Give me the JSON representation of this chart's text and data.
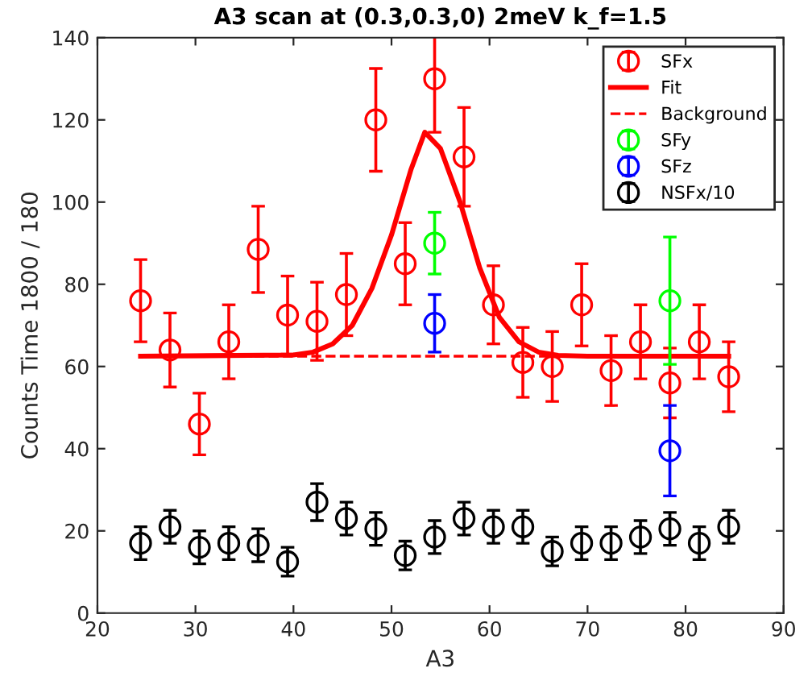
{
  "chart_data": {
    "type": "scatter",
    "title": "A3 scan at (0.3,0.3,0) 2meV k_f=1.5",
    "xlabel": "A3",
    "ylabel": "Counts Time 1800 / 180",
    "xlim": [
      20,
      90
    ],
    "ylim": [
      0,
      140
    ],
    "xticks": [
      20,
      30,
      40,
      50,
      60,
      70,
      80,
      90
    ],
    "yticks": [
      0,
      20,
      40,
      60,
      80,
      100,
      120,
      140
    ],
    "grid": false,
    "legend": "top right",
    "marker": "circle",
    "series": [
      {
        "name": "SFx",
        "color": "#ff0000",
        "x": [
          24.4,
          27.4,
          30.4,
          33.4,
          36.4,
          39.4,
          42.4,
          45.4,
          48.4,
          51.4,
          54.4,
          57.4,
          60.4,
          63.4,
          66.4,
          69.4,
          72.4,
          75.4,
          78.4,
          81.4,
          84.4
        ],
        "values": [
          76,
          64,
          46,
          66,
          88.5,
          72.5,
          71,
          77.5,
          120,
          85,
          130,
          111,
          75,
          61,
          60,
          75,
          59,
          66,
          56,
          66,
          57.5
        ],
        "errors": [
          10,
          9,
          7.5,
          9,
          10.5,
          9.5,
          9.5,
          10,
          12.5,
          10,
          13,
          12,
          9.5,
          8.5,
          8.5,
          10,
          8.5,
          9,
          8.5,
          9,
          8.5
        ]
      },
      {
        "name": "Fit",
        "type": "line",
        "marker": "none",
        "line_style": "solid",
        "color": "#ff0000",
        "x": [
          24.4,
          40,
          42,
          44,
          46,
          48,
          50,
          52,
          53.4,
          55,
          57,
          59,
          61,
          63,
          65,
          67,
          70,
          84.4
        ],
        "values": [
          62.5,
          62.8,
          63.5,
          65.5,
          70,
          79,
          92,
          108,
          117,
          113,
          100,
          84,
          72,
          66,
          63.5,
          62.7,
          62.5,
          62.5
        ]
      },
      {
        "name": "Background",
        "type": "line",
        "marker": "none",
        "line_style": "dashed",
        "color": "#ff0000",
        "x": [
          24.4,
          84.4
        ],
        "values": [
          62.5,
          62.5
        ]
      },
      {
        "name": "SFy",
        "color": "#00ff00",
        "x": [
          54.4,
          78.4
        ],
        "values": [
          90,
          76
        ],
        "errors": [
          7.5,
          15.5
        ]
      },
      {
        "name": "SFz",
        "color": "#0000ff",
        "x": [
          54.4,
          78.4
        ],
        "values": [
          70.5,
          39.5
        ],
        "errors": [
          7,
          11
        ]
      },
      {
        "name": "NSFx/10",
        "color": "#000000",
        "x": [
          24.4,
          27.4,
          30.4,
          33.4,
          36.4,
          39.4,
          42.4,
          45.4,
          48.4,
          51.4,
          54.4,
          57.4,
          60.4,
          63.4,
          66.4,
          69.4,
          72.4,
          75.4,
          78.4,
          81.4,
          84.4
        ],
        "values": [
          17,
          21,
          16,
          17,
          16.5,
          12.5,
          27,
          23,
          20.5,
          14,
          18.5,
          23,
          21,
          21,
          15,
          17,
          17,
          18.5,
          20.5,
          17,
          21
        ],
        "errors": [
          4,
          4,
          4,
          4,
          4,
          3.5,
          4.5,
          4,
          4,
          3.5,
          4,
          4,
          4,
          4,
          3.5,
          4,
          4,
          4,
          4,
          4,
          4
        ]
      }
    ]
  }
}
